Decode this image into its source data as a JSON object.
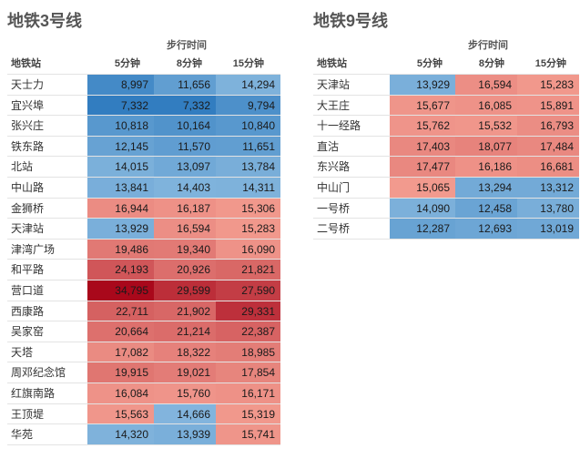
{
  "chart_data": [
    {
      "type": "table",
      "title": "地铁3号线",
      "header_group": "步行时间",
      "row_header": "地铁站",
      "columns": [
        "5分钟",
        "8分钟",
        "15分钟"
      ],
      "rows": [
        {
          "station": "天士力",
          "values": [
            8997,
            11656,
            14294
          ]
        },
        {
          "station": "宜兴埠",
          "values": [
            7332,
            7332,
            9794
          ]
        },
        {
          "station": "张兴庄",
          "values": [
            10818,
            10164,
            10840
          ]
        },
        {
          "station": "铁东路",
          "values": [
            12145,
            11570,
            11651
          ]
        },
        {
          "station": "北站",
          "values": [
            14015,
            13097,
            13784
          ]
        },
        {
          "station": "中山路",
          "values": [
            13841,
            14403,
            14311
          ]
        },
        {
          "station": "金狮桥",
          "values": [
            16944,
            16187,
            15306
          ]
        },
        {
          "station": "天津站",
          "values": [
            13929,
            16594,
            15283
          ]
        },
        {
          "station": "津湾广场",
          "values": [
            19486,
            19340,
            16090
          ]
        },
        {
          "station": "和平路",
          "values": [
            24193,
            20926,
            21821
          ]
        },
        {
          "station": "营口道",
          "values": [
            34795,
            29599,
            27590
          ]
        },
        {
          "station": "西康路",
          "values": [
            22711,
            21902,
            29331
          ]
        },
        {
          "station": "吴家窑",
          "values": [
            20664,
            21214,
            22387
          ]
        },
        {
          "station": "天塔",
          "values": [
            17082,
            18322,
            18985
          ]
        },
        {
          "station": "周邓纪念馆",
          "values": [
            19915,
            19021,
            17854
          ]
        },
        {
          "station": "红旗南路",
          "values": [
            16084,
            15760,
            16171
          ]
        },
        {
          "station": "王顶堤",
          "values": [
            15563,
            14666,
            15319
          ]
        },
        {
          "station": "华苑",
          "values": [
            14320,
            13939,
            15741
          ]
        }
      ]
    },
    {
      "type": "table",
      "title": "地铁9号线",
      "header_group": "步行时间",
      "row_header": "地铁站",
      "columns": [
        "5分钟",
        "8分钟",
        "15分钟"
      ],
      "rows": [
        {
          "station": "天津站",
          "values": [
            13929,
            16594,
            15283
          ]
        },
        {
          "station": "大王庄",
          "values": [
            15677,
            16085,
            15891
          ]
        },
        {
          "station": "十一经路",
          "values": [
            15762,
            15532,
            16793
          ]
        },
        {
          "station": "直沽",
          "values": [
            17403,
            18077,
            17484
          ]
        },
        {
          "station": "东兴路",
          "values": [
            17477,
            16186,
            16681
          ]
        },
        {
          "station": "中山门",
          "values": [
            15065,
            13294,
            13312
          ]
        },
        {
          "station": "一号桥",
          "values": [
            14090,
            12458,
            13780
          ]
        },
        {
          "station": "二号桥",
          "values": [
            12287,
            12693,
            13019
          ]
        }
      ]
    }
  ],
  "color_scale": {
    "midpoint": 15000,
    "low_color": "#2e7bbf",
    "mid_low_color": "#86b7de",
    "mid_high_color": "#f29a8e",
    "high_color": "#a8061a"
  }
}
